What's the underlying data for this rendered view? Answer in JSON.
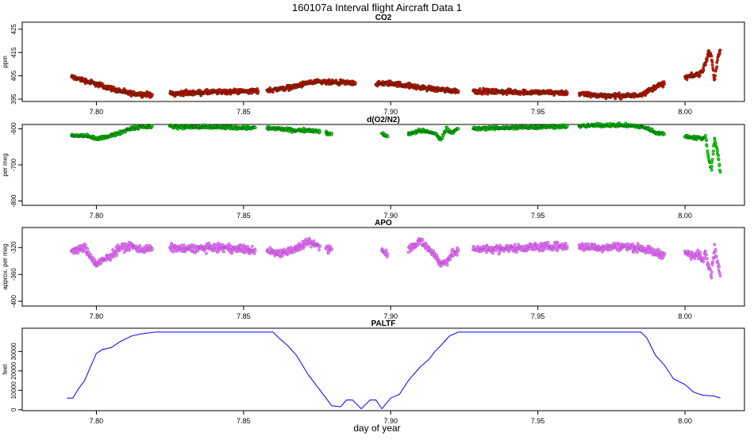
{
  "title": "160107a   Interval flight Aircraft Data 1",
  "xlabel": "day of year",
  "x_ticks": [
    7.8,
    7.85,
    7.9,
    7.95,
    8.0
  ],
  "x_tick_labels": [
    "7.80",
    "7.85",
    "7.90",
    "7.95",
    "8.00"
  ],
  "xlim": [
    7.7748,
    8.0202
  ],
  "colors": {
    "co2_fill": "#ff0000",
    "o2n2_fill": "#00ee00",
    "apo_fill": "#ee82ee",
    "apo_edge": "#9932cc",
    "paltf_line": "#0000ff",
    "point_edge": "#003300"
  },
  "chart_data": [
    {
      "type": "scatter",
      "title": "CO2",
      "ylabel": "ppm",
      "ylim": [
        394,
        428
      ],
      "y_ticks": [
        395,
        405,
        415,
        425
      ],
      "y_tick_labels": [
        "395",
        "405",
        "415",
        "425"
      ],
      "color": "#ff0000",
      "noise": 0.9,
      "series": [
        {
          "x": [
            7.7915,
            7.796,
            7.8,
            7.804,
            7.808,
            7.811,
            7.814,
            7.817,
            7.819
          ],
          "y": [
            404.5,
            403.0,
            401.5,
            400.0,
            398.5,
            397.5,
            397.3,
            397.0,
            397.0
          ]
        },
        {
          "x": [
            7.825,
            7.83,
            7.84,
            7.85,
            7.855
          ],
          "y": [
            397.3,
            397.6,
            398.0,
            398.4,
            398.4
          ]
        },
        {
          "x": [
            7.858,
            7.863,
            7.868,
            7.872,
            7.876,
            7.882,
            7.888
          ],
          "y": [
            398.8,
            399.5,
            400.5,
            402.0,
            402.3,
            402.0,
            402.0
          ]
        },
        {
          "x": [
            7.895,
            7.9,
            7.905,
            7.91,
            7.915,
            7.92,
            7.923
          ],
          "y": [
            401.5,
            401.8,
            401.0,
            400.0,
            399.3,
            398.8,
            398.5
          ]
        },
        {
          "x": [
            7.928,
            7.935,
            7.945,
            7.955,
            7.96
          ],
          "y": [
            398.5,
            398.2,
            398.0,
            397.8,
            397.8
          ]
        },
        {
          "x": [
            7.964,
            7.97,
            7.978,
            7.983,
            7.986,
            7.989,
            7.991,
            7.993
          ],
          "y": [
            397.2,
            396.6,
            396.4,
            396.5,
            397.5,
            399.5,
            401.0,
            401.5
          ]
        },
        {
          "x": [
            8.0,
            8.003,
            8.005,
            8.006,
            8.007,
            8.008,
            8.009,
            8.01,
            8.011,
            8.012
          ],
          "y": [
            404.5,
            405.0,
            406.0,
            407.0,
            411.0,
            415.0,
            413.5,
            403.0,
            412.0,
            416.0
          ]
        }
      ]
    },
    {
      "type": "scatter",
      "title": "d(O2/N2)",
      "ylabel": "per meg",
      "ylim": [
        -812,
        -588
      ],
      "y_ticks": [
        -800,
        -700,
        -600
      ],
      "y_tick_labels": [
        "-800",
        "-700",
        "-600"
      ],
      "color": "#00ee00",
      "noise": 4,
      "series": [
        {
          "x": [
            7.7915,
            7.796,
            7.8,
            7.804,
            7.808,
            7.811,
            7.815,
            7.819
          ],
          "y": [
            -620.0,
            -618.0,
            -628.0,
            -620.0,
            -612.0,
            -600.0,
            -595.0,
            -594.0
          ]
        },
        {
          "x": [
            7.825,
            7.83,
            7.84,
            7.85,
            7.854
          ],
          "y": [
            -594.0,
            -595.0,
            -596.0,
            -597.0,
            -597.0
          ]
        },
        {
          "x": [
            7.858,
            7.862,
            7.868,
            7.872,
            7.876
          ],
          "y": [
            -598.0,
            -600.0,
            -605.0,
            -603.0,
            -608.0
          ]
        },
        {
          "x": [
            7.878,
            7.88
          ],
          "y": [
            -612.0,
            -615.0
          ]
        },
        {
          "x": [
            7.897,
            7.899
          ],
          "y": [
            -612.0,
            -622.0
          ]
        },
        {
          "x": [
            7.906,
            7.91,
            7.915,
            7.917,
            7.919,
            7.921,
            7.923
          ],
          "y": [
            -614.0,
            -605.0,
            -612.0,
            -630.0,
            -600.0,
            -610.0,
            -600.0
          ]
        },
        {
          "x": [
            7.928,
            7.935,
            7.945,
            7.955,
            7.96
          ],
          "y": [
            -600.0,
            -598.0,
            -596.0,
            -594.0,
            -593.0
          ]
        },
        {
          "x": [
            7.964,
            7.97,
            7.978,
            7.983,
            7.987,
            7.99,
            7.993
          ],
          "y": [
            -593.0,
            -590.0,
            -590.0,
            -592.0,
            -598.0,
            -610.0,
            -615.0
          ]
        },
        {
          "x": [
            8.0,
            8.003,
            8.005,
            8.006,
            8.007,
            8.008,
            8.009,
            8.01,
            8.011,
            8.012
          ],
          "y": [
            -620.0,
            -625.0,
            -625.0,
            -628.0,
            -620.0,
            -680.0,
            -715.0,
            -630.0,
            -660.0,
            -720.0
          ]
        }
      ]
    },
    {
      "type": "scatter",
      "title": "APO",
      "ylabel": "approx. per meg",
      "ylim": [
        -407,
        -290
      ],
      "y_ticks": [
        -400,
        -360,
        -320
      ],
      "y_tick_labels": [
        "-400",
        "-360",
        "-320"
      ],
      "color": "#ee82ee",
      "noise": 5,
      "series": [
        {
          "x": [
            7.7915,
            7.796,
            7.8,
            7.804,
            7.808,
            7.812,
            7.815,
            7.819
          ],
          "y": [
            -325.0,
            -320.0,
            -345.0,
            -335.0,
            -320.0,
            -318.0,
            -322.0,
            -322.0
          ]
        },
        {
          "x": [
            7.825,
            7.83,
            7.84,
            7.85,
            7.854
          ],
          "y": [
            -320.0,
            -322.0,
            -320.0,
            -322.0,
            -325.0
          ]
        },
        {
          "x": [
            7.858,
            7.862,
            7.868,
            7.872,
            7.876
          ],
          "y": [
            -325.0,
            -328.0,
            -322.0,
            -312.0,
            -318.0
          ]
        },
        {
          "x": [
            7.878,
            7.88
          ],
          "y": [
            -320.0,
            -322.0
          ]
        },
        {
          "x": [
            7.897,
            7.899
          ],
          "y": [
            -322.0,
            -330.0
          ]
        },
        {
          "x": [
            7.906,
            7.91,
            7.915,
            7.917,
            7.919,
            7.921,
            7.923
          ],
          "y": [
            -322.0,
            -310.0,
            -330.0,
            -345.0,
            -340.0,
            -330.0,
            -325.0
          ]
        },
        {
          "x": [
            7.928,
            7.935,
            7.945,
            7.955,
            7.96
          ],
          "y": [
            -322.0,
            -322.0,
            -320.0,
            -318.0,
            -318.0
          ]
        },
        {
          "x": [
            7.964,
            7.97,
            7.978,
            7.983,
            7.987,
            7.99,
            7.993
          ],
          "y": [
            -318.0,
            -320.0,
            -318.0,
            -320.0,
            -322.0,
            -328.0,
            -330.0
          ]
        },
        {
          "x": [
            8.0,
            8.003,
            8.005,
            8.006,
            8.007,
            8.008,
            8.009,
            8.01,
            8.011,
            8.012
          ],
          "y": [
            -328.0,
            -332.0,
            -330.0,
            -340.0,
            -325.0,
            -345.0,
            -360.0,
            -320.0,
            -340.0,
            -362.0
          ]
        }
      ]
    },
    {
      "type": "line",
      "title": "PALTF",
      "ylabel": "feet",
      "ylim": [
        -500,
        42000
      ],
      "y_ticks": [
        0,
        10000,
        20000,
        30000
      ],
      "y_tick_labels": [
        "0",
        "10000",
        "20000",
        "30000"
      ],
      "color": "#0000ff",
      "series": [
        {
          "x": [
            7.79,
            7.792,
            7.794,
            7.796,
            7.798,
            7.8,
            7.802,
            7.805,
            7.808,
            7.812,
            7.815,
            7.82,
            7.85,
            7.86,
            7.862,
            7.865,
            7.868,
            7.87,
            7.872,
            7.875,
            7.878,
            7.88,
            7.883,
            7.885,
            7.887,
            7.89,
            7.893,
            7.895,
            7.897,
            7.9,
            7.903,
            7.906,
            7.91,
            7.913,
            7.915,
            7.917,
            7.92,
            7.923,
            7.95,
            7.985,
            7.987,
            7.99,
            7.993,
            7.996,
            8.0,
            8.003,
            8.006,
            8.01,
            8.012
          ],
          "y": [
            6000,
            6000,
            11000,
            15000,
            22000,
            29000,
            31000,
            32000,
            35000,
            38000,
            39000,
            40000,
            40000,
            40000,
            37000,
            33000,
            28000,
            23000,
            18000,
            12000,
            6000,
            2000,
            1500,
            5000,
            5000,
            500,
            5000,
            5000,
            500,
            6000,
            8000,
            15000,
            22000,
            26000,
            30000,
            33000,
            38000,
            40000,
            40000,
            40000,
            37000,
            28000,
            23000,
            16000,
            13000,
            9000,
            7500,
            7000,
            6000
          ]
        }
      ]
    }
  ]
}
